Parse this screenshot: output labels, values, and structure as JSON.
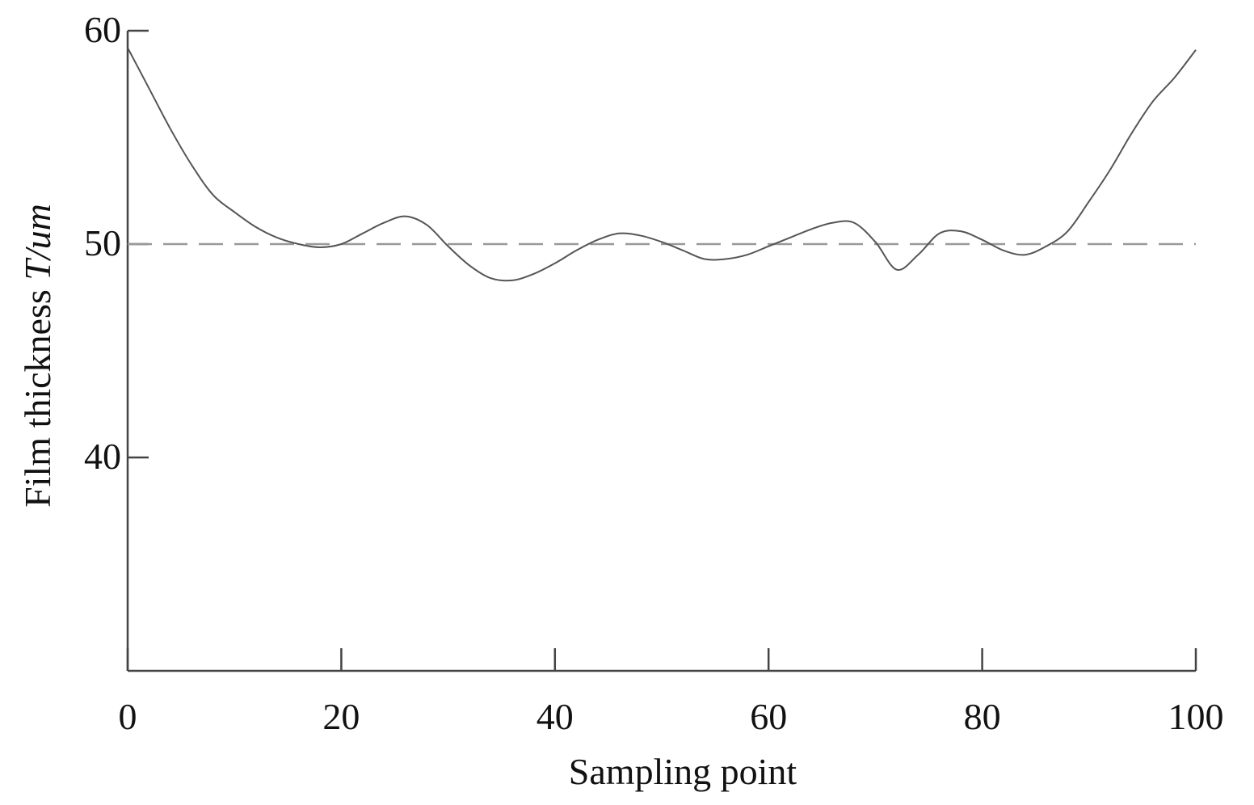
{
  "chart_data": {
    "type": "line",
    "xlabel": "Sampling point",
    "ylabel": "Film thickness",
    "ylabel_italic": "T/um",
    "x": [
      0,
      2,
      4,
      6,
      8,
      10,
      12,
      14,
      16,
      18,
      20,
      22,
      24,
      26,
      28,
      30,
      32,
      34,
      36,
      38,
      40,
      42,
      44,
      46,
      48,
      50,
      52,
      54,
      56,
      58,
      60,
      62,
      64,
      66,
      68,
      70,
      72,
      74,
      76,
      78,
      80,
      82,
      84,
      86,
      88,
      90,
      92,
      94,
      96,
      98,
      100
    ],
    "series": [
      {
        "color": "#555555",
        "values": [
          59.2,
          57.3,
          55.4,
          53.7,
          52.3,
          51.5,
          50.8,
          50.3,
          50.0,
          49.85,
          50.0,
          50.5,
          51.0,
          51.3,
          50.9,
          49.9,
          49.0,
          48.4,
          48.3,
          48.6,
          49.1,
          49.7,
          50.2,
          50.5,
          50.4,
          50.1,
          49.7,
          49.3,
          49.3,
          49.5,
          49.9,
          50.3,
          50.7,
          51.0,
          51.0,
          50.1,
          48.8,
          49.5,
          50.5,
          50.6,
          50.2,
          49.7,
          49.5,
          49.9,
          50.6,
          52.0,
          53.5,
          55.2,
          56.7,
          57.8,
          59.1
        ]
      }
    ],
    "reference_y": 50,
    "reference_color": "#999999",
    "xlim": [
      0,
      100
    ],
    "xticks": [
      0,
      20,
      40,
      60,
      80,
      100
    ],
    "ylim": [
      30,
      60
    ],
    "yticks": [
      40,
      50,
      60
    ]
  }
}
